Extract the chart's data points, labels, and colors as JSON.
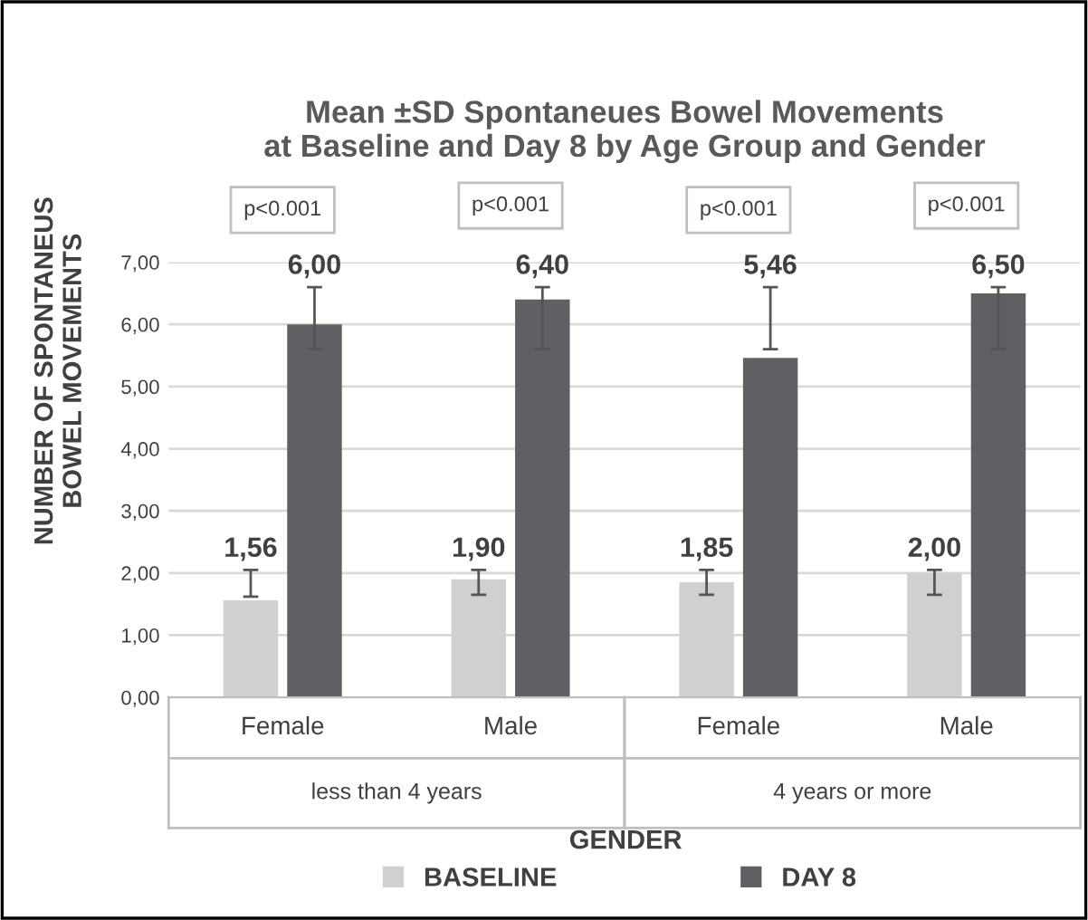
{
  "chart_data": {
    "type": "bar",
    "title": "Mean ±SD Spontaneues Bowel Movements\nat Baseline and Day 8 by Age Group and Gender",
    "xlabel": "GENDER",
    "ylabel": "NUMBER OF SPONTANEUS\nBOWEL MOVEMENTS",
    "categories": [
      "Female",
      "Male",
      "Female",
      "Male"
    ],
    "series": [
      {
        "name": "BASELINE",
        "color": "#d0d0d0",
        "values": [
          1.56,
          1.9,
          1.85,
          2.0
        ],
        "value_labels": [
          "1,56",
          "1,90",
          "1,85",
          "2,00"
        ],
        "errors": [
          [
            1.62,
            2.05
          ],
          [
            1.65,
            2.05
          ],
          [
            1.65,
            2.05
          ],
          [
            1.65,
            2.05
          ]
        ]
      },
      {
        "name": "DAY 8",
        "color": "#606064",
        "values": [
          6.0,
          6.4,
          5.46,
          6.5
        ],
        "value_labels": [
          "6,00",
          "6,40",
          "5,46",
          "6,50"
        ],
        "errors": [
          [
            5.6,
            6.6
          ],
          [
            5.6,
            6.6
          ],
          [
            5.6,
            6.6
          ],
          [
            5.6,
            6.6
          ]
        ]
      }
    ],
    "annotations": [
      "p<0.001",
      "p<0.001",
      "p<0.001",
      "p<0.001",
      "less than 4 years",
      "4 years or more"
    ],
    "ylim": [
      0,
      7
    ],
    "yticks": [
      {
        "value": 0,
        "label": "0,00"
      },
      {
        "value": 1,
        "label": "1,00"
      },
      {
        "value": 2,
        "label": "2,00"
      },
      {
        "value": 3,
        "label": "3,00"
      },
      {
        "value": 4,
        "label": "4,00"
      },
      {
        "value": 5,
        "label": "5,00"
      },
      {
        "value": 6,
        "label": "6,00"
      },
      {
        "value": 7,
        "label": "7,00"
      }
    ],
    "grid": "y",
    "legend": "bottom"
  }
}
